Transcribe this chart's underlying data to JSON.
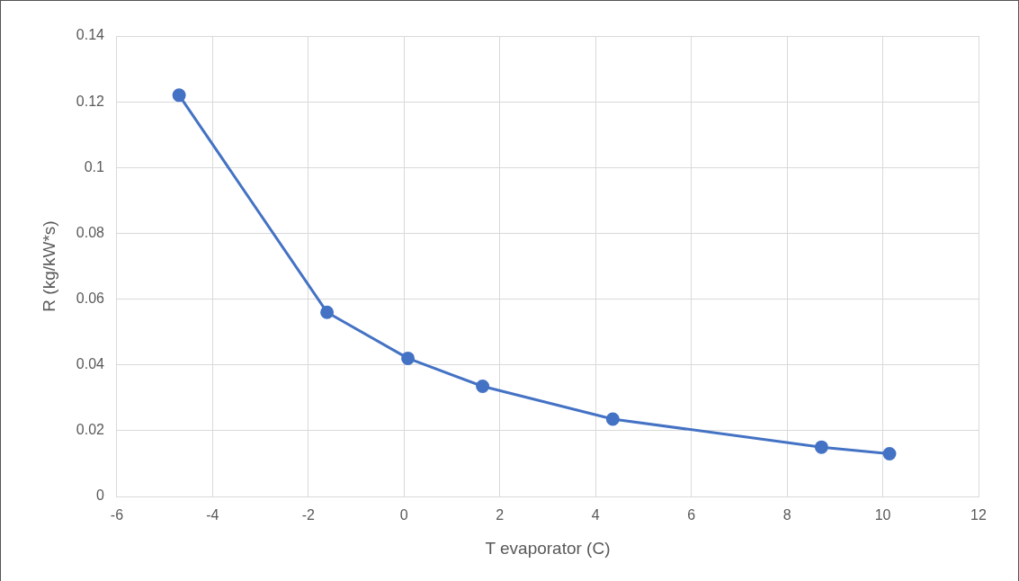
{
  "chart_data": {
    "type": "line",
    "xlabel": "T evaporator (C)",
    "ylabel": "R (kg/kW*s)",
    "x": [
      -4.7,
      -1.61,
      0.08,
      1.64,
      4.36,
      8.72,
      10.14
    ],
    "series": [
      {
        "color": "#4472c4",
        "values": [
          0.122,
          0.056,
          0.042,
          0.0335,
          0.0235,
          0.015,
          0.013
        ]
      }
    ],
    "xlim": [
      -6,
      12
    ],
    "xticks": [
      -6,
      -4,
      -2,
      0,
      2,
      4,
      6,
      8,
      10,
      12
    ],
    "ylim": [
      0,
      0.14
    ],
    "yticks": [
      0,
      0.02,
      0.04,
      0.06,
      0.08,
      0.1,
      0.12,
      0.14
    ],
    "grid": true,
    "marker": "circle",
    "line_style": "solid",
    "legend": false
  }
}
